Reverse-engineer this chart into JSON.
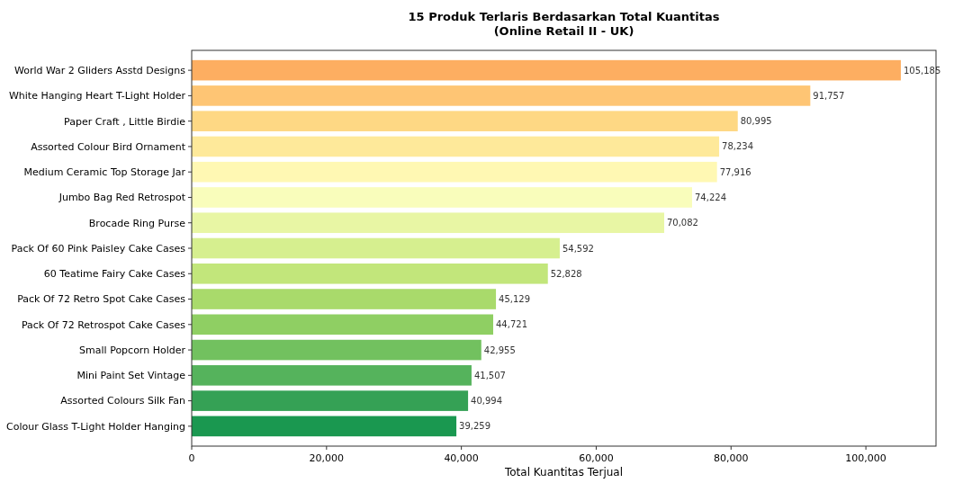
{
  "chart_data": {
    "type": "bar",
    "orientation": "horizontal",
    "title": "15 Produk Terlaris Berdasarkan Total Kuantitas\n(Online Retail II - UK)",
    "xlabel": "Total Kuantitas Terjual",
    "categories": [
      "World War 2 Gliders Asstd Designs",
      "White Hanging Heart T-Light Holder",
      "Paper Craft , Little Birdie",
      "Assorted Colour Bird Ornament",
      "Medium Ceramic Top Storage Jar",
      "Jumbo Bag Red Retrospot",
      "Brocade Ring Purse",
      "Pack Of 60 Pink Paisley Cake Cases",
      "60 Teatime Fairy Cake Cases",
      "Pack Of 72 Retro Spot Cake Cases",
      "Pack Of 72 Retrospot Cake Cases",
      "Small Popcorn Holder",
      "Mini Paint Set Vintage",
      "Assorted Colours Silk Fan",
      "Colour Glass T-Light Holder Hanging"
    ],
    "values": [
      105185,
      91757,
      80995,
      78234,
      77916,
      74224,
      70082,
      54592,
      52828,
      45129,
      44721,
      42955,
      41507,
      40994,
      39259
    ],
    "colors": [
      "#fdae61",
      "#fec574",
      "#fed884",
      "#fee99a",
      "#fff8b3",
      "#f9fdbb",
      "#e8f6a4",
      "#d6ef8f",
      "#c2e67b",
      "#a9da6b",
      "#8fcf63",
      "#72c15f",
      "#55b35c",
      "#35a155",
      "#1a9850"
    ],
    "xlim": [
      0,
      110400
    ],
    "xticks": [
      {
        "value": 0,
        "label": "0"
      },
      {
        "value": 20000,
        "label": "20,000"
      },
      {
        "value": 40000,
        "label": "40,000"
      },
      {
        "value": 60000,
        "label": "60,000"
      },
      {
        "value": 80000,
        "label": "80,000"
      },
      {
        "value": 100000,
        "label": "100,000"
      }
    ],
    "value_labels": [
      "105,185",
      "91,757",
      "80,995",
      "78,234",
      "77,916",
      "74,224",
      "70,082",
      "54,592",
      "52,828",
      "45,129",
      "44,721",
      "42,955",
      "41,507",
      "40,994",
      "39,259"
    ]
  }
}
